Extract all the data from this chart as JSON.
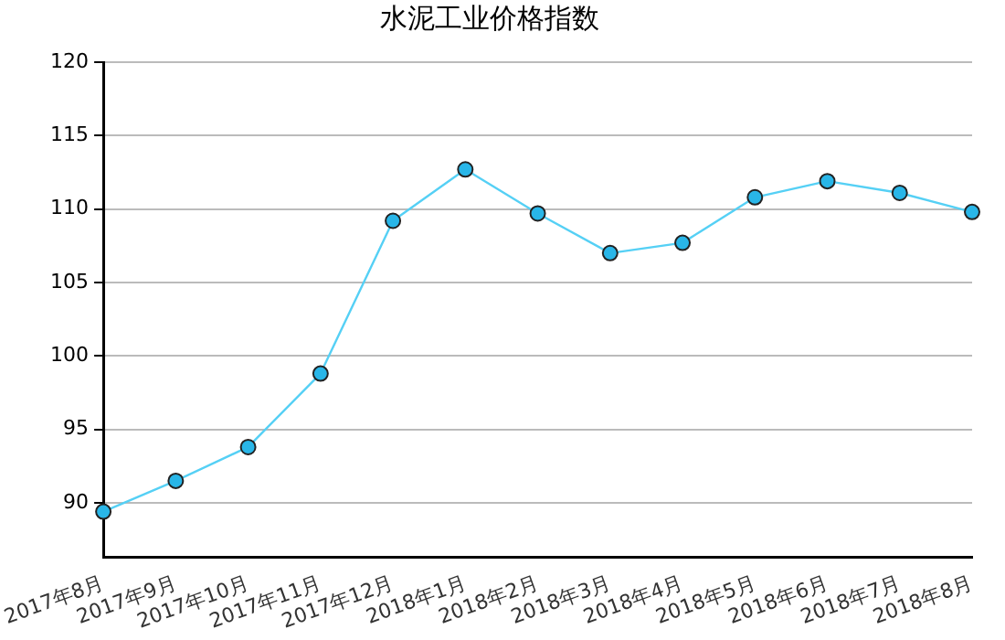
{
  "chart_data": {
    "type": "line",
    "title": "水泥工业价格指数",
    "categories": [
      "2017年8月",
      "2017年9月",
      "2017年10月",
      "2017年11月",
      "2017年12月",
      "2018年1月",
      "2018年2月",
      "2018年3月",
      "2018年4月",
      "2018年5月",
      "2018年6月",
      "2018年7月",
      "2018年8月"
    ],
    "series": [
      {
        "color": "#55d0f5",
        "values": [
          89.4,
          91.5,
          93.8,
          98.8,
          109.2,
          112.7,
          109.7,
          107.0,
          107.7,
          110.8,
          111.9,
          111.1,
          109.8
        ]
      }
    ],
    "ylim": [
      86.3,
      120
    ],
    "yticks": [
      90,
      95,
      100,
      105,
      110,
      115,
      120
    ],
    "grid": "y",
    "marker": "circle",
    "line_style": "solid",
    "legend": false
  }
}
